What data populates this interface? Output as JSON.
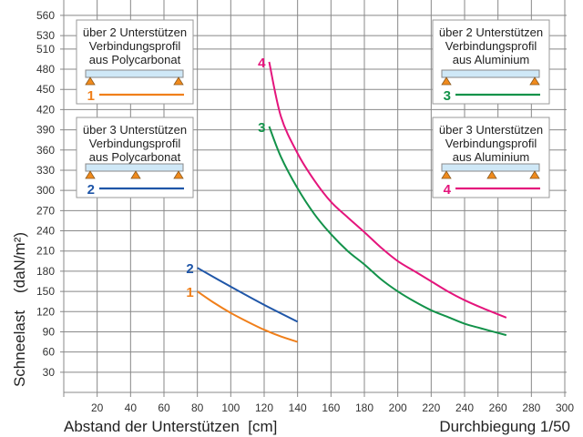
{
  "chart_data": {
    "type": "line",
    "title": "",
    "xlabel": "Abstand der Unterstützen  [cm]",
    "ylabel": "Schneelast    (daN/m²)",
    "note": "Durchbiegung 1/50",
    "xlim": [
      0,
      300
    ],
    "ylim": [
      0,
      560
    ],
    "xticks": [
      20,
      40,
      60,
      80,
      100,
      120,
      140,
      160,
      180,
      200,
      220,
      240,
      260,
      280,
      300
    ],
    "yticks": [
      30,
      60,
      90,
      120,
      150,
      180,
      210,
      240,
      270,
      300,
      330,
      360,
      390,
      420,
      450,
      480,
      510,
      530,
      560
    ],
    "grid": true,
    "series": [
      {
        "name": "1",
        "color": "#f07f1a",
        "x": [
          80,
          90,
          100,
          110,
          120,
          130,
          140
        ],
        "y": [
          150,
          133,
          118,
          105,
          93,
          83,
          75
        ]
      },
      {
        "name": "2",
        "color": "#1f56a8",
        "x": [
          80,
          100,
          120,
          140
        ],
        "y": [
          185,
          157,
          130,
          105
        ]
      },
      {
        "name": "3",
        "color": "#13924a",
        "x": [
          123,
          130,
          140,
          150,
          160,
          170,
          180,
          190,
          200,
          210,
          220,
          230,
          240,
          250,
          265
        ],
        "y": [
          395,
          350,
          303,
          265,
          235,
          210,
          190,
          168,
          150,
          135,
          122,
          112,
          102,
          95,
          85
        ]
      },
      {
        "name": "4",
        "color": "#e4157c",
        "x": [
          123,
          130,
          140,
          150,
          160,
          170,
          180,
          190,
          200,
          210,
          220,
          230,
          240,
          250,
          265
        ],
        "y": [
          491,
          410,
          355,
          315,
          283,
          260,
          238,
          215,
          195,
          180,
          165,
          150,
          137,
          126,
          111
        ]
      }
    ],
    "legend": [
      {
        "series": "1",
        "lines": [
          "über 2 Unterstützen",
          "Verbindungsprofil",
          "aus Polycarbonat"
        ],
        "supports": 2,
        "placement": "top-left"
      },
      {
        "series": "2",
        "lines": [
          "über 3 Unterstützen",
          "Verbindungsprofil",
          "aus Polycarbonat"
        ],
        "supports": 3,
        "placement": "middle-left"
      },
      {
        "series": "3",
        "lines": [
          "über 2 Unterstützen",
          "Verbindungsprofil",
          "aus Aluminium"
        ],
        "supports": 2,
        "placement": "top-right"
      },
      {
        "series": "4",
        "lines": [
          "über 3 Unterstützen",
          "Verbindungsprofil",
          "aus Aluminium"
        ],
        "supports": 3,
        "placement": "middle-right"
      }
    ]
  }
}
